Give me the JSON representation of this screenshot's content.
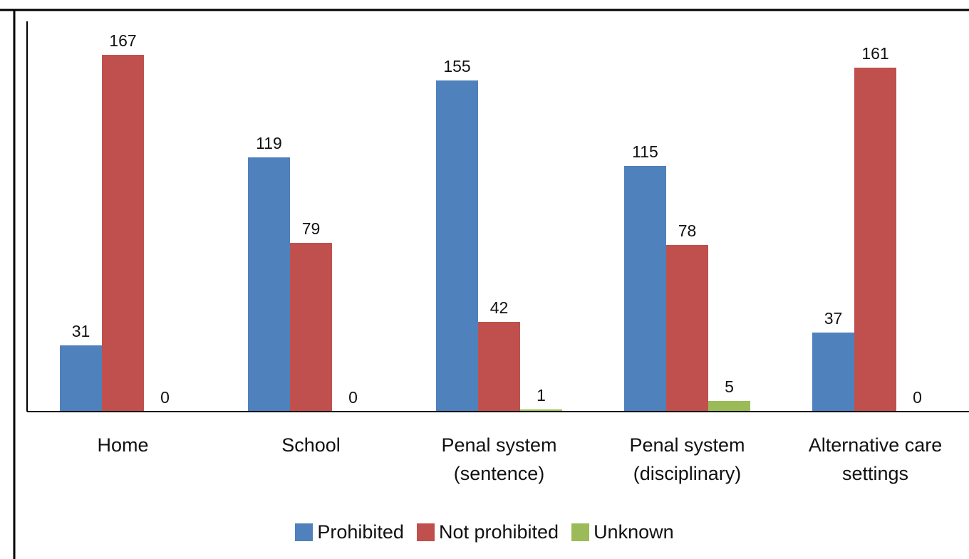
{
  "chart_data": {
    "type": "bar",
    "categories": [
      [
        "Home"
      ],
      [
        "School"
      ],
      [
        "Penal system",
        "(sentence)"
      ],
      [
        "Penal system",
        "(disciplinary)"
      ],
      [
        "Alternative care",
        "settings"
      ]
    ],
    "series": [
      {
        "name": "Prohibited",
        "color": "#4f81bd",
        "values": [
          31,
          119,
          155,
          115,
          37
        ]
      },
      {
        "name": "Not prohibited",
        "color": "#c0504d",
        "values": [
          167,
          79,
          42,
          78,
          161
        ]
      },
      {
        "name": "Unknown",
        "color": "#9bbb59",
        "values": [
          0,
          0,
          1,
          5,
          0
        ]
      }
    ],
    "title": "",
    "xlabel": "",
    "ylabel": "",
    "ylim": [
      0,
      180
    ],
    "grid": false,
    "data_labels": true,
    "legend_position": "bottom"
  }
}
